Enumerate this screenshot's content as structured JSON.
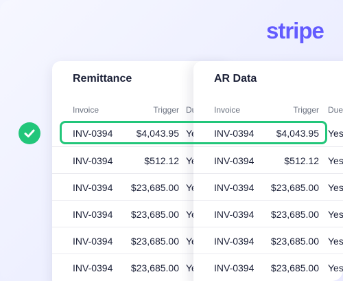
{
  "brand": {
    "logo_text": "stripe",
    "accent": "#635bff",
    "success": "#22c67a"
  },
  "remittance": {
    "title": "Remittance",
    "headers": [
      "Invoice",
      "Trigger",
      "Due"
    ],
    "rows": [
      {
        "invoice": "INV-0394",
        "amount": "$4,043.95",
        "due": "Yes"
      },
      {
        "invoice": "INV-0394",
        "amount": "$512.12",
        "due": "Yes"
      },
      {
        "invoice": "INV-0394",
        "amount": "$23,685.00",
        "due": "Yes"
      },
      {
        "invoice": "INV-0394",
        "amount": "$23,685.00",
        "due": "Yes"
      },
      {
        "invoice": "INV-0394",
        "amount": "$23,685.00",
        "due": "Yes"
      },
      {
        "invoice": "INV-0394",
        "amount": "$23,685.00",
        "due": "Yes"
      }
    ]
  },
  "ar_data": {
    "title": "AR Data",
    "headers": [
      "Invoice",
      "Trigger",
      "Due"
    ],
    "rows": [
      {
        "invoice": "INV-0394",
        "amount": "$4,043.95",
        "due": "Yes"
      },
      {
        "invoice": "INV-0394",
        "amount": "$512.12",
        "due": "Yes"
      },
      {
        "invoice": "INV-0394",
        "amount": "$23,685.00",
        "due": "Yes"
      },
      {
        "invoice": "INV-0394",
        "amount": "$23,685.00",
        "due": "Yes"
      },
      {
        "invoice": "INV-0394",
        "amount": "$23,685.00",
        "due": "Yes"
      },
      {
        "invoice": "INV-0394",
        "amount": "$23,685.00",
        "due": "Yes"
      }
    ]
  }
}
